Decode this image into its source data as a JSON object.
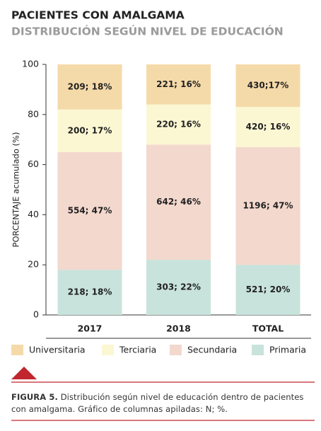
{
  "chart_data": {
    "type": "stacked_bar",
    "title": "PACIENTES CON AMALGAMA",
    "subtitle": "DISTRIBUCIÓN SEGÚN NIVEL DE EDUCACIÓN",
    "y_label": "PORCENTAJE acumulado (%)",
    "categories": [
      "2017",
      "2018",
      "TOTAL"
    ],
    "series": [
      {
        "name": "Primaria",
        "color": "#c8e3db",
        "values": [
          18,
          22,
          20
        ],
        "value_labels": [
          "218; 18%",
          "303; 22%",
          "521; 20%"
        ]
      },
      {
        "name": "Secundaria",
        "color": "#f3d8cd",
        "values": [
          47,
          46,
          47
        ],
        "value_labels": [
          "554; 47%",
          "642; 46%",
          "1196; 47%"
        ]
      },
      {
        "name": "Terciaria",
        "color": "#fbf7d3",
        "values": [
          17,
          16,
          16
        ],
        "value_labels": [
          "200; 17%",
          "220; 16%",
          "420; 16%"
        ]
      },
      {
        "name": "Universitaria",
        "color": "#f5daa9",
        "values": [
          18,
          16,
          17
        ],
        "value_labels": [
          "209; 18%",
          "221; 16%",
          "430;17%"
        ]
      }
    ],
    "ylim": [
      0,
      100
    ],
    "yticks": [
      0,
      20,
      40,
      60,
      80,
      100
    ],
    "caption": {
      "label": "FIGURA 5.",
      "text": "Distribución según nivel de educación dentro de pacientes con amalgama. Gráfico de columnas apiladas: N; %."
    }
  }
}
